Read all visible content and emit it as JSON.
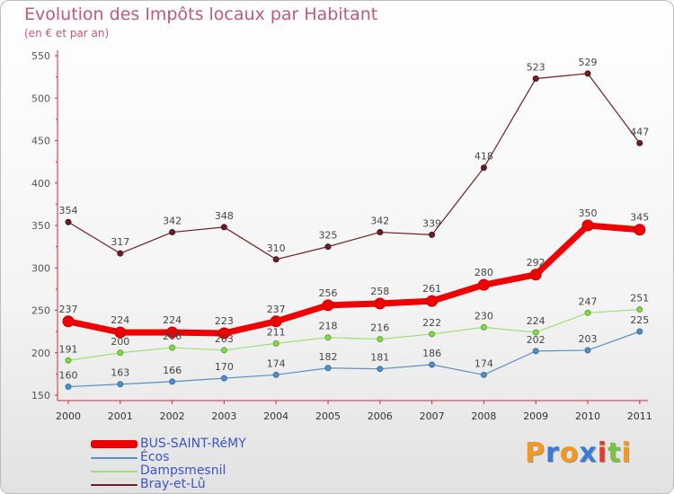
{
  "title": "Evolution des Impôts locaux par Habitant",
  "subtitle": "(en € et par an)",
  "brand": {
    "letters": [
      "P",
      "r",
      "o",
      "x",
      "i",
      "t",
      "i"
    ],
    "colors": [
      "#f39a1e",
      "#3a7bd5",
      "#f39a1e",
      "#3a7bd5",
      "#e23c2b",
      "#7cc242",
      "#f39a1e"
    ]
  },
  "chart_data": {
    "type": "line",
    "title": "Evolution des Impôts locaux par Habitant",
    "subtitle": "(en € et par an)",
    "x": [
      "2000",
      "2001",
      "2002",
      "2003",
      "2004",
      "2005",
      "2006",
      "2007",
      "2008",
      "2009",
      "2010",
      "2011"
    ],
    "ylim": [
      150,
      550
    ],
    "yticks": [
      "150",
      "200",
      "250",
      "300",
      "350",
      "400",
      "450",
      "500",
      "550"
    ],
    "grid": false,
    "legend_position": "bottom-left",
    "series": [
      {
        "name": "BUS-SAINT-RéMY",
        "color": "#f00000",
        "values": [
          237,
          224,
          224,
          223,
          237,
          256,
          258,
          261,
          280,
          292,
          350,
          345
        ],
        "labels": [
          "237",
          "224",
          "224",
          "223",
          "237",
          "256",
          "258",
          "261",
          "280",
          "292",
          "350",
          "345"
        ]
      },
      {
        "name": "Écos",
        "color": "#5b8ec4",
        "values": [
          160,
          163,
          166,
          170,
          174,
          182,
          181,
          186,
          174,
          202,
          203,
          225
        ],
        "labels": [
          "160",
          "163",
          "166",
          "170",
          "174",
          "182",
          "181",
          "186",
          "174",
          "202",
          "203",
          "225"
        ]
      },
      {
        "name": "Dampsmesnil",
        "color": "#9fde78",
        "values": [
          191,
          200,
          206,
          203,
          211,
          218,
          216,
          222,
          230,
          224,
          247,
          251
        ],
        "labels": [
          "191",
          "200",
          "206",
          "203",
          "211",
          "218",
          "216",
          "222",
          "230",
          "224",
          "247",
          "251"
        ]
      },
      {
        "name": "Bray-et-Lû",
        "color": "#6e1f24",
        "values": [
          354,
          317,
          342,
          348,
          310,
          325,
          342,
          339,
          418,
          523,
          529,
          447
        ],
        "labels": [
          "354",
          "317",
          "342",
          "348",
          "310",
          "325",
          "342",
          "339",
          "418",
          "523",
          "529",
          "447"
        ]
      }
    ]
  }
}
